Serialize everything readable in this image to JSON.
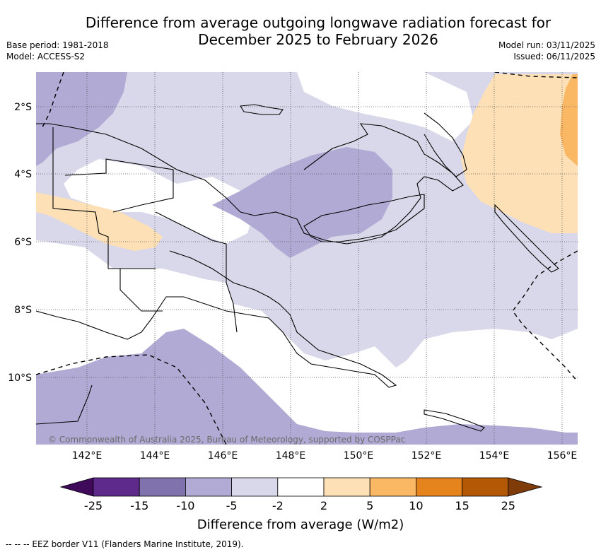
{
  "title": {
    "line1": "Difference from average outgoing longwave radiation forecast for",
    "line2": "December 2025 to February 2026"
  },
  "meta_left": {
    "base_period": "Base period: 1981-2018",
    "model": "Model: ACCESS-S2"
  },
  "meta_right": {
    "model_run": "Model run: 03/11/2025",
    "issued": "Issued: 06/11/2025"
  },
  "map": {
    "lat_ticks": [
      "2°S",
      "4°S",
      "6°S",
      "8°S",
      "10°S"
    ],
    "lon_ticks": [
      "142°E",
      "144°E",
      "146°E",
      "148°E",
      "150°E",
      "152°E",
      "154°E",
      "156°E"
    ],
    "credit": "© Commonwealth of Australia 2025, Bureau of Meteorology, supported by COSPPac"
  },
  "colorbar": {
    "labels": [
      "-25",
      "-15",
      "-10",
      "-5",
      "-2",
      "2",
      "5",
      "10",
      "15",
      "25"
    ],
    "colors": [
      "#3f0a5a",
      "#5e2a8c",
      "#8072ad",
      "#b0aad4",
      "#d8d8ea",
      "#ffffff",
      "#fde0b6",
      "#fbb864",
      "#e5841d",
      "#b35906",
      "#7f3b08"
    ],
    "title": "Difference from average (W/m2)"
  },
  "legend": {
    "eez_note": "--  --  -- EEZ border V11 (Flanders Marine Institute, 2019)."
  }
}
